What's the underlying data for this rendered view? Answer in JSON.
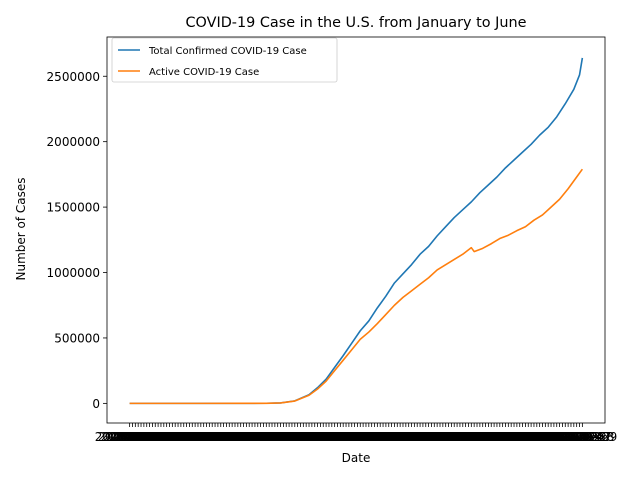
{
  "chart_data": {
    "type": "line",
    "title": "COVID-19 Case in the U.S. from January to June",
    "xlabel": "Date",
    "ylabel": "Number of Cases",
    "ylim": [
      -150000,
      2800000
    ],
    "yticks": [
      "0",
      "500000",
      "1000000",
      "1500000",
      "2000000",
      "2500000"
    ],
    "ytick_values": [
      0,
      500000,
      1000000,
      1500000,
      2000000,
      2500000
    ],
    "x_start": "2020-01-22",
    "x_end": "2020-06-29",
    "x_tick_labels_note": "dense overlapping date labels",
    "legend": "upper left",
    "grid": false,
    "series": [
      {
        "name": "Total Confirmed COVID-19 Case",
        "color": "#1f77b4",
        "points": [
          [
            "2020-01-22",
            0
          ],
          [
            "2020-02-15",
            0
          ],
          [
            "2020-03-01",
            100
          ],
          [
            "2020-03-10",
            900
          ],
          [
            "2020-03-15",
            3500
          ],
          [
            "2020-03-20",
            19000
          ],
          [
            "2020-03-25",
            66000
          ],
          [
            "2020-03-28",
            120000
          ],
          [
            "2020-03-31",
            185000
          ],
          [
            "2020-04-03",
            275000
          ],
          [
            "2020-04-06",
            365000
          ],
          [
            "2020-04-09",
            460000
          ],
          [
            "2020-04-12",
            555000
          ],
          [
            "2020-04-15",
            630000
          ],
          [
            "2020-04-18",
            730000
          ],
          [
            "2020-04-21",
            820000
          ],
          [
            "2020-04-24",
            920000
          ],
          [
            "2020-04-27",
            990000
          ],
          [
            "2020-04-30",
            1060000
          ],
          [
            "2020-05-03",
            1140000
          ],
          [
            "2020-05-06",
            1200000
          ],
          [
            "2020-05-09",
            1280000
          ],
          [
            "2020-05-12",
            1350000
          ],
          [
            "2020-05-15",
            1420000
          ],
          [
            "2020-05-18",
            1480000
          ],
          [
            "2020-05-21",
            1540000
          ],
          [
            "2020-05-24",
            1610000
          ],
          [
            "2020-05-27",
            1670000
          ],
          [
            "2020-05-30",
            1730000
          ],
          [
            "2020-06-02",
            1800000
          ],
          [
            "2020-06-05",
            1860000
          ],
          [
            "2020-06-08",
            1920000
          ],
          [
            "2020-06-11",
            1980000
          ],
          [
            "2020-06-14",
            2050000
          ],
          [
            "2020-06-17",
            2110000
          ],
          [
            "2020-06-20",
            2190000
          ],
          [
            "2020-06-23",
            2290000
          ],
          [
            "2020-06-26",
            2400000
          ],
          [
            "2020-06-28",
            2510000
          ],
          [
            "2020-06-29",
            2640000
          ]
        ]
      },
      {
        "name": "Active COVID-19 Case",
        "color": "#ff7f0e",
        "points": [
          [
            "2020-01-22",
            0
          ],
          [
            "2020-02-15",
            0
          ],
          [
            "2020-03-01",
            80
          ],
          [
            "2020-03-10",
            800
          ],
          [
            "2020-03-15",
            3200
          ],
          [
            "2020-03-20",
            18000
          ],
          [
            "2020-03-25",
            62000
          ],
          [
            "2020-03-28",
            110000
          ],
          [
            "2020-03-31",
            170000
          ],
          [
            "2020-04-03",
            250000
          ],
          [
            "2020-04-06",
            330000
          ],
          [
            "2020-04-09",
            410000
          ],
          [
            "2020-04-12",
            490000
          ],
          [
            "2020-04-15",
            545000
          ],
          [
            "2020-04-18",
            610000
          ],
          [
            "2020-04-21",
            680000
          ],
          [
            "2020-04-24",
            750000
          ],
          [
            "2020-04-27",
            810000
          ],
          [
            "2020-04-30",
            860000
          ],
          [
            "2020-05-03",
            910000
          ],
          [
            "2020-05-06",
            960000
          ],
          [
            "2020-05-09",
            1020000
          ],
          [
            "2020-05-12",
            1060000
          ],
          [
            "2020-05-15",
            1100000
          ],
          [
            "2020-05-18",
            1140000
          ],
          [
            "2020-05-21",
            1190000
          ],
          [
            "2020-05-22",
            1160000
          ],
          [
            "2020-05-25",
            1185000
          ],
          [
            "2020-05-28",
            1220000
          ],
          [
            "2020-05-31",
            1260000
          ],
          [
            "2020-06-03",
            1285000
          ],
          [
            "2020-06-06",
            1320000
          ],
          [
            "2020-06-09",
            1350000
          ],
          [
            "2020-06-12",
            1400000
          ],
          [
            "2020-06-15",
            1440000
          ],
          [
            "2020-06-18",
            1500000
          ],
          [
            "2020-06-21",
            1560000
          ],
          [
            "2020-06-24",
            1640000
          ],
          [
            "2020-06-27",
            1730000
          ],
          [
            "2020-06-29",
            1790000
          ]
        ]
      }
    ]
  }
}
